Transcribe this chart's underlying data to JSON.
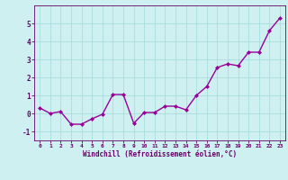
{
  "x": [
    0,
    1,
    2,
    3,
    4,
    5,
    6,
    7,
    8,
    9,
    10,
    11,
    12,
    13,
    14,
    15,
    16,
    17,
    18,
    19,
    20,
    21,
    22,
    23
  ],
  "y": [
    0.3,
    0.0,
    0.1,
    -0.6,
    -0.6,
    -0.3,
    -0.05,
    1.05,
    1.05,
    -0.55,
    0.05,
    0.05,
    0.4,
    0.4,
    0.2,
    1.0,
    1.5,
    2.55,
    2.75,
    2.65,
    3.4,
    3.4,
    4.6,
    5.3
  ],
  "xlim": [
    -0.5,
    23.5
  ],
  "ylim": [
    -1.5,
    6.0
  ],
  "yticks": [
    -1,
    0,
    1,
    2,
    3,
    4,
    5
  ],
  "xticks": [
    0,
    1,
    2,
    3,
    4,
    5,
    6,
    7,
    8,
    9,
    10,
    11,
    12,
    13,
    14,
    15,
    16,
    17,
    18,
    19,
    20,
    21,
    22,
    23
  ],
  "xlabel": "Windchill (Refroidissement éolien,°C)",
  "line_color": "#990099",
  "marker": "D",
  "marker_size": 2,
  "bg_color": "#cff0f0",
  "grid_color": "#a8dede",
  "axis_color": "#660066",
  "tick_label_color": "#660066",
  "xlabel_color": "#660066",
  "line_width": 1.0,
  "figsize": [
    3.2,
    2.0
  ],
  "dpi": 100
}
